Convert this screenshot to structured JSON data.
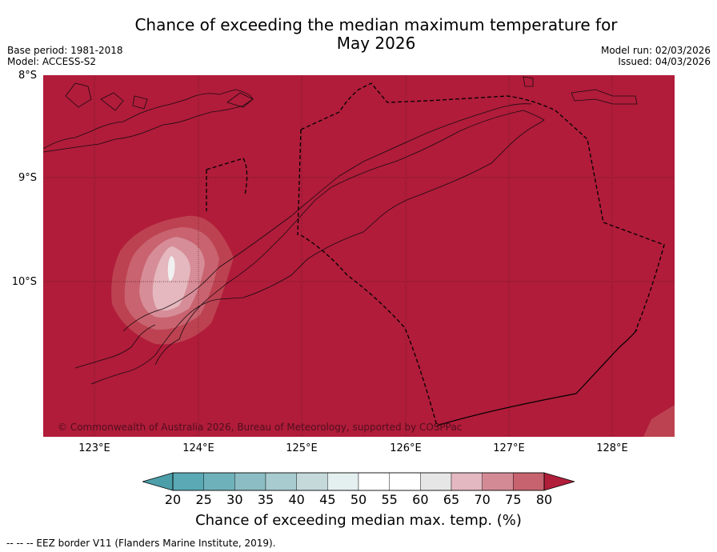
{
  "title_line1": "Chance of exceeding the median maximum temperature for",
  "title_line2": "May 2026",
  "meta": {
    "base_period": "Base period: 1981-2018",
    "model": "Model: ACCESS-S2",
    "model_run": "Model run: 02/03/2026",
    "issued": "Issued: 04/03/2026"
  },
  "axes": {
    "lat_labels": [
      "8°S",
      "9°S",
      "10°S"
    ],
    "lon_labels": [
      "123°E",
      "124°E",
      "125°E",
      "126°E",
      "127°E",
      "128°E"
    ]
  },
  "copyright": "© Commonwealth of Australia 2026, Bureau of Meteorology, supported by COSPPac",
  "colorbar": {
    "ticks": [
      "20",
      "25",
      "30",
      "35",
      "40",
      "45",
      "50",
      "55",
      "60",
      "65",
      "70",
      "75",
      "80"
    ],
    "colors": [
      "#5aa9b4",
      "#6fb1bb",
      "#8cbdc4",
      "#a8cbcf",
      "#c5d9db",
      "#e4eff0",
      "#ffffff",
      "#ffffff",
      "#e6e6e6",
      "#e3b8c0",
      "#d48a95",
      "#c7636f",
      "#b8404f"
    ],
    "under_color": "#4c9ea9",
    "over_color": "#b01e3a",
    "label": "Chance of exceeding median max. temp. (%)"
  },
  "footer": "--  --  -- EEZ border V11 (Flanders Marine Institute, 2019).",
  "field_colors": {
    "c80": "#b01c3a",
    "c75": "#bd4251",
    "c70": "#c8636f",
    "c65": "#d68d98",
    "c60": "#e4b8be",
    "c55": "#f0f0f0"
  }
}
